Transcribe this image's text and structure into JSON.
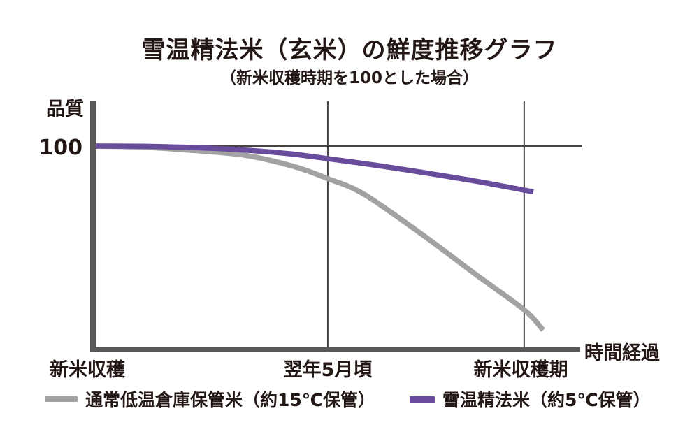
{
  "title": "雪温精法米（玄米）の鮮度推移グラフ",
  "subtitle": "（新米収穫時期を100とした場合）",
  "colors": {
    "purple": "#6a4c9c",
    "gray": "#a2a2a2",
    "axis": "#595757",
    "thin_line": "#474443",
    "text": "#231815",
    "background": "#ffffff"
  },
  "axis_labels": {
    "quality": "品質",
    "reference": "100",
    "time": "時間経過"
  },
  "chart_data": {
    "type": "line",
    "title": "雪温精法米（玄米）の鮮度推移グラフ",
    "subtitle": "（新米収穫時期を100とした場合）",
    "ylabel": "品質",
    "xlabel": "時間経過",
    "y_reference": 100,
    "ylim": [
      0,
      122
    ],
    "grid": "vertical-ticks-plus-reference-line",
    "legend_position": "bottom",
    "x_ticks": [
      {
        "label": "新米収穫",
        "pos": 0
      },
      {
        "label": "翌年5月頃",
        "pos": 0.482
      },
      {
        "label": "新米収穫期",
        "pos": 0.885
      }
    ],
    "series": [
      {
        "name": "通常低温倉庫保管米（約15℃保管）",
        "color_key": "gray",
        "points": [
          {
            "x": 0,
            "y": 100
          },
          {
            "x": 0.1,
            "y": 99.5
          },
          {
            "x": 0.197,
            "y": 98
          },
          {
            "x": 0.311,
            "y": 95.5
          },
          {
            "x": 0.412,
            "y": 90
          },
          {
            "x": 0.482,
            "y": 84
          },
          {
            "x": 0.555,
            "y": 76.5
          },
          {
            "x": 0.67,
            "y": 57.5
          },
          {
            "x": 0.785,
            "y": 37
          },
          {
            "x": 0.885,
            "y": 19.5
          },
          {
            "x": 0.924,
            "y": 9.5
          }
        ]
      },
      {
        "name": "雪温精法米（約5℃保管）",
        "color_key": "purple",
        "points": [
          {
            "x": 0,
            "y": 100
          },
          {
            "x": 0.1,
            "y": 99.9
          },
          {
            "x": 0.2,
            "y": 99.3
          },
          {
            "x": 0.3,
            "y": 98.2
          },
          {
            "x": 0.4,
            "y": 96.3
          },
          {
            "x": 0.482,
            "y": 93.8
          },
          {
            "x": 0.58,
            "y": 90.6
          },
          {
            "x": 0.67,
            "y": 87.3
          },
          {
            "x": 0.78,
            "y": 83
          },
          {
            "x": 0.904,
            "y": 77.5
          }
        ]
      }
    ]
  },
  "legend": {
    "items": [
      {
        "label": "通常低温倉庫保管米（約15℃保管）",
        "color_key": "gray"
      },
      {
        "label": "雪温精法米（約5℃保管）",
        "color_key": "purple"
      }
    ]
  }
}
